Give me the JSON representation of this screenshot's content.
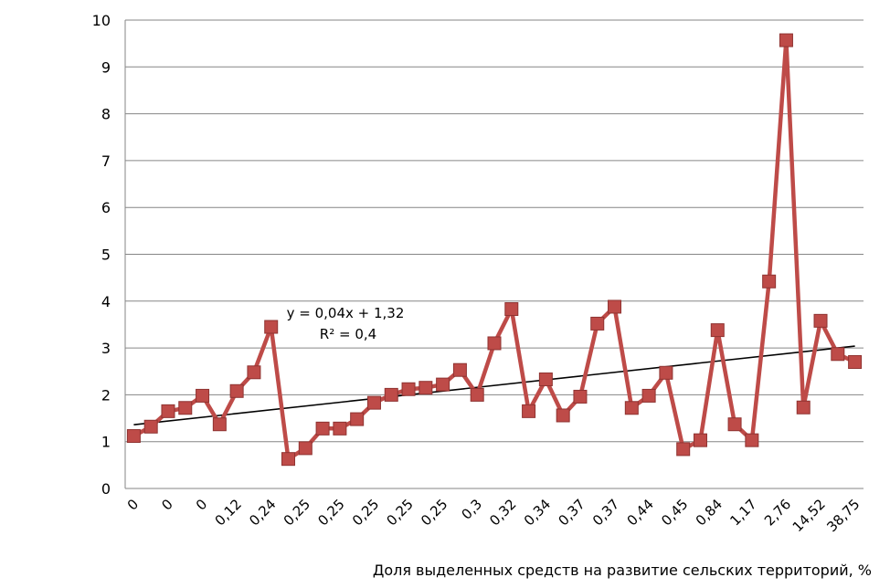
{
  "chart_data": {
    "type": "line",
    "title": "",
    "xlabel": "Доля выделенных средств на развитие сельских территорий, %",
    "ylabel": "",
    "ylim": [
      0,
      10
    ],
    "yticks": [
      0,
      1,
      2,
      3,
      4,
      5,
      6,
      7,
      8,
      9,
      10
    ],
    "grid": true,
    "legend": "none",
    "x_tick_labels": [
      "0",
      "0",
      "0",
      "0,12",
      "0,24",
      "0,25",
      "0,25",
      "0,25",
      "0,25",
      "0,25",
      "0,3",
      "0,32",
      "0,34",
      "0,37",
      "0,37",
      "0,44",
      "0,45",
      "0,84",
      "1,17",
      "2,76",
      "14,52",
      "38,75"
    ],
    "series": [
      {
        "values": [
          1.12,
          1.32,
          1.65,
          1.72,
          1.98,
          1.37,
          2.08,
          2.48,
          3.45,
          0.63,
          0.86,
          1.28,
          1.28,
          1.48,
          1.83,
          2.0,
          2.12,
          2.15,
          2.22,
          2.53,
          2.0,
          3.1,
          3.83,
          1.65,
          2.33,
          1.56,
          1.96,
          3.52,
          3.88,
          1.72,
          1.98,
          2.47,
          0.84,
          1.03,
          3.38,
          1.37,
          1.03,
          4.42,
          9.57,
          1.73,
          3.58,
          2.87,
          2.7
        ],
        "color": "#be4b48"
      }
    ],
    "trendline": {
      "type": "linear",
      "slope": 0.04,
      "intercept": 1.32,
      "equation": "y = 0,04x + 1,32",
      "r2": "R² = 0,4",
      "color": "#000000"
    }
  }
}
